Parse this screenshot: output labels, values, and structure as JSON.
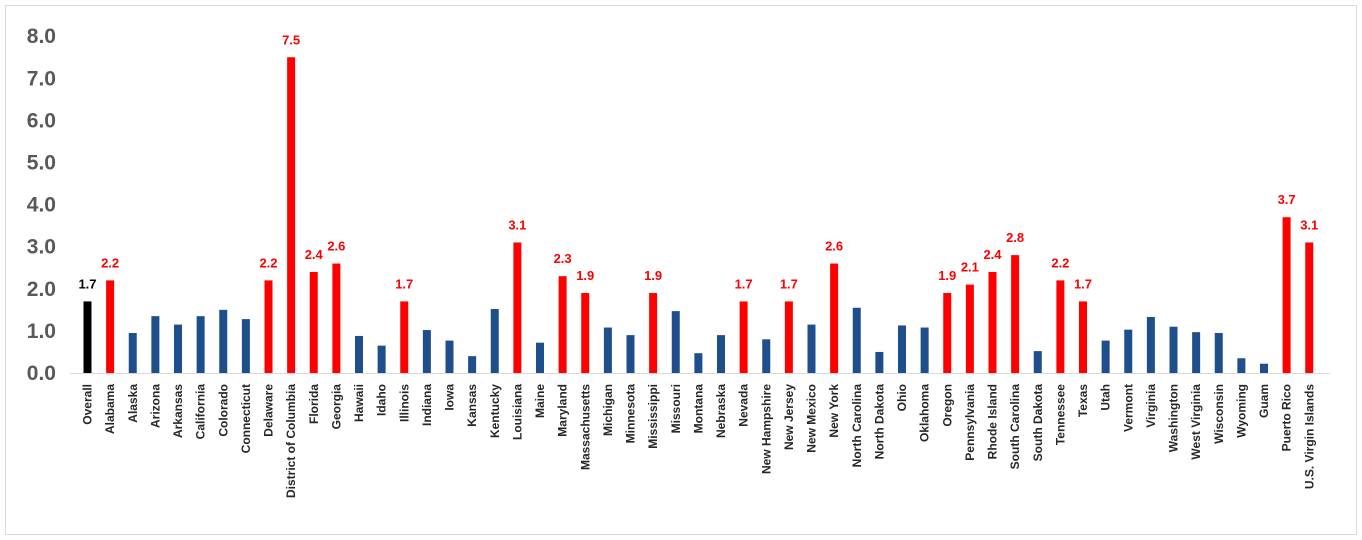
{
  "chart_data": {
    "type": "bar",
    "title": "",
    "xlabel": "",
    "ylabel": "",
    "ylim": [
      0,
      8
    ],
    "yticks": [
      "0.0",
      "1.0",
      "2.0",
      "3.0",
      "4.0",
      "5.0",
      "6.0",
      "7.0",
      "8.0"
    ],
    "grid": false,
    "legend": "none",
    "colors": {
      "overall": "#000000",
      "highlight": "#ff0000",
      "default": "#1f4e8c",
      "highlight_label": "#ff0000",
      "overall_label": "#000000"
    },
    "categories": [
      "Overall",
      "Alabama",
      "Alaska",
      "Arizona",
      "Arkansas",
      "California",
      "Colorado",
      "Connecticut",
      "Delaware",
      "District of Columbia",
      "Florida",
      "Georgia",
      "Hawaii",
      "Idaho",
      "Illinois",
      "Indiana",
      "Iowa",
      "Kansas",
      "Kentucky",
      "Louisiana",
      "Maine",
      "Maryland",
      "Massachusetts",
      "Michigan",
      "Minnesota",
      "Mississippi",
      "Missouri",
      "Montana",
      "Nebraska",
      "Nevada",
      "New Hampshire",
      "New Jersey",
      "New Mexico",
      "New York",
      "North Carolina",
      "North Dakota",
      "Ohio",
      "Oklahoma",
      "Oregon",
      "Pennsylvania",
      "Rhode Island",
      "South Carolina",
      "South Dakota",
      "Tennessee",
      "Texas",
      "Utah",
      "Vermont",
      "Virginia",
      "Washington",
      "West Virginia",
      "Wisconsin",
      "Wyoming",
      "Guam",
      "Puerto Rico",
      "U.S. Virgin Islands"
    ],
    "values": [
      1.7,
      2.2,
      0.95,
      1.35,
      1.15,
      1.35,
      1.5,
      1.28,
      2.2,
      7.5,
      2.4,
      2.6,
      0.88,
      0.65,
      1.7,
      1.02,
      0.77,
      0.4,
      1.52,
      3.1,
      0.72,
      2.3,
      1.9,
      1.08,
      0.9,
      1.9,
      1.47,
      0.47,
      0.9,
      1.7,
      0.8,
      1.7,
      1.15,
      2.6,
      1.55,
      0.5,
      1.13,
      1.08,
      1.9,
      2.1,
      2.4,
      2.8,
      0.52,
      2.2,
      1.7,
      0.77,
      1.03,
      1.33,
      1.1,
      0.97,
      0.95,
      0.35,
      0.22,
      3.7,
      3.1
    ],
    "bar_group": [
      "overall",
      "highlight",
      "default",
      "default",
      "default",
      "default",
      "default",
      "default",
      "highlight",
      "highlight",
      "highlight",
      "highlight",
      "default",
      "default",
      "highlight",
      "default",
      "default",
      "default",
      "default",
      "highlight",
      "default",
      "highlight",
      "highlight",
      "default",
      "default",
      "highlight",
      "default",
      "default",
      "default",
      "highlight",
      "default",
      "highlight",
      "default",
      "highlight",
      "default",
      "default",
      "default",
      "default",
      "highlight",
      "highlight",
      "highlight",
      "highlight",
      "default",
      "highlight",
      "highlight",
      "default",
      "default",
      "default",
      "default",
      "default",
      "default",
      "default",
      "default",
      "highlight",
      "highlight"
    ],
    "data_labels": [
      "1.7",
      "2.2",
      "",
      "",
      "",
      "",
      "",
      "",
      "2.2",
      "7.5",
      "2.4",
      "2.6",
      "",
      "",
      "1.7",
      "",
      "",
      "",
      "",
      "3.1",
      "",
      "2.3",
      "1.9",
      "",
      "",
      "1.9",
      "",
      "",
      "",
      "1.7",
      "",
      "1.7",
      "",
      "2.6",
      "",
      "",
      "",
      "",
      "1.9",
      "2.1",
      "2.4",
      "2.8",
      "",
      "2.2",
      "1.7",
      "",
      "",
      "",
      "",
      "",
      "",
      "",
      "",
      "3.7",
      "3.1"
    ]
  }
}
